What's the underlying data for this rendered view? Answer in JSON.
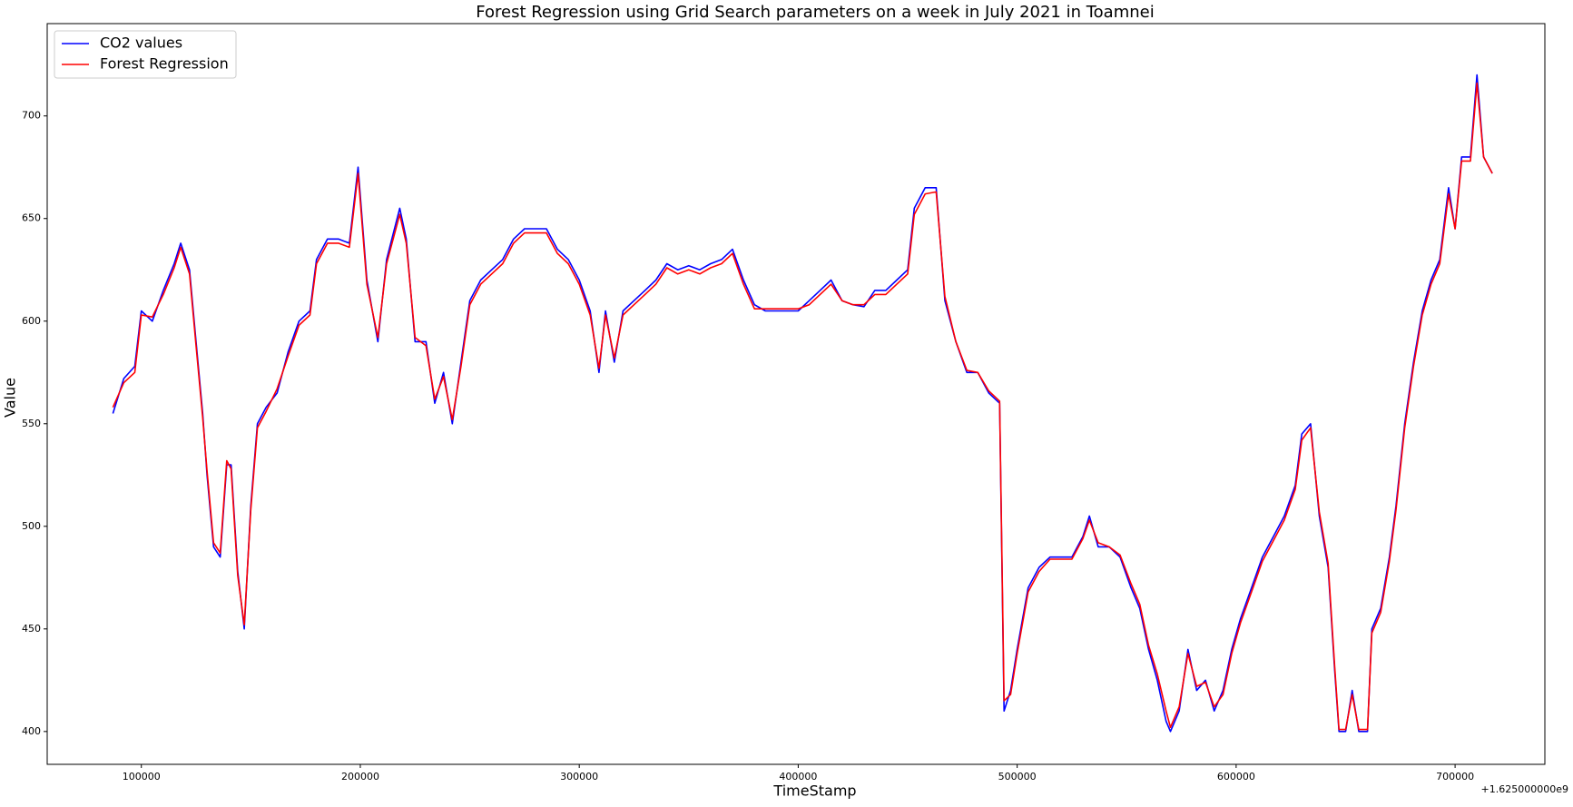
{
  "chart_data": {
    "type": "line",
    "title": "Forest Regression using Grid Search parameters on a week in July 2021 in Toamnei",
    "x_label": "TimeStamp",
    "y_label": "Value",
    "x_offset_label": "+1.625000000e9",
    "legend_position": "upper left",
    "x": [
      87000,
      92000,
      97000,
      100000,
      105000,
      110000,
      115000,
      118000,
      122000,
      125000,
      128000,
      130000,
      133000,
      136000,
      139000,
      141000,
      144000,
      147000,
      150000,
      153000,
      157000,
      162000,
      167000,
      172000,
      177000,
      180000,
      185000,
      190000,
      195000,
      199000,
      203000,
      208000,
      212000,
      218000,
      221000,
      225000,
      230000,
      234000,
      238000,
      242000,
      246000,
      250000,
      255000,
      260000,
      265000,
      270000,
      275000,
      280000,
      285000,
      290000,
      295000,
      300000,
      305000,
      309000,
      312000,
      316000,
      320000,
      325000,
      330000,
      335000,
      340000,
      345000,
      350000,
      355000,
      360000,
      365000,
      370000,
      375000,
      380000,
      385000,
      390000,
      395000,
      400000,
      405000,
      410000,
      415000,
      420000,
      425000,
      430000,
      435000,
      440000,
      445000,
      450000,
      453000,
      458000,
      463000,
      467000,
      472000,
      477000,
      482000,
      487000,
      492000,
      494000,
      497000,
      500000,
      505000,
      510000,
      515000,
      520000,
      525000,
      530000,
      533000,
      537000,
      542000,
      547000,
      552000,
      556000,
      560000,
      564000,
      568000,
      570000,
      574000,
      578000,
      582000,
      586000,
      590000,
      594000,
      598000,
      602000,
      607000,
      612000,
      617000,
      622000,
      627000,
      630000,
      634000,
      638000,
      642000,
      645000,
      647000,
      650000,
      653000,
      656000,
      660000,
      662000,
      666000,
      670000,
      673000,
      677000,
      681000,
      685000,
      689000,
      693000,
      697000,
      700000,
      703000,
      707000,
      710000,
      713000,
      717000
    ],
    "series": [
      {
        "name": "CO2 values",
        "color": "#0000ff",
        "values": [
          555,
          572,
          578,
          605,
          600,
          615,
          628,
          638,
          625,
          590,
          555,
          525,
          490,
          485,
          530,
          530,
          478,
          450,
          510,
          550,
          558,
          565,
          585,
          600,
          605,
          630,
          640,
          640,
          638,
          675,
          620,
          590,
          630,
          655,
          640,
          590,
          590,
          560,
          575,
          550,
          580,
          610,
          620,
          625,
          630,
          640,
          645,
          645,
          645,
          635,
          630,
          620,
          605,
          575,
          605,
          580,
          605,
          610,
          615,
          620,
          628,
          625,
          627,
          625,
          628,
          630,
          635,
          620,
          608,
          605,
          605,
          605,
          605,
          610,
          615,
          620,
          610,
          608,
          607,
          615,
          615,
          620,
          625,
          655,
          665,
          665,
          610,
          590,
          575,
          575,
          565,
          560,
          410,
          420,
          440,
          470,
          480,
          485,
          485,
          485,
          495,
          505,
          490,
          490,
          485,
          470,
          460,
          440,
          425,
          405,
          400,
          410,
          440,
          420,
          425,
          410,
          420,
          440,
          455,
          470,
          485,
          495,
          505,
          520,
          545,
          550,
          505,
          480,
          430,
          400,
          400,
          420,
          400,
          400,
          450,
          460,
          485,
          510,
          550,
          580,
          605,
          620,
          630,
          665,
          645,
          680,
          680,
          720,
          680,
          672
        ]
      },
      {
        "name": "Forest Regression",
        "color": "#ff0000",
        "values": [
          558,
          570,
          575,
          603,
          602,
          613,
          626,
          636,
          623,
          588,
          553,
          527,
          492,
          487,
          532,
          528,
          476,
          452,
          508,
          548,
          556,
          567,
          583,
          598,
          603,
          628,
          638,
          638,
          636,
          672,
          618,
          592,
          628,
          652,
          638,
          592,
          588,
          562,
          573,
          552,
          578,
          608,
          618,
          623,
          628,
          638,
          643,
          643,
          643,
          633,
          628,
          618,
          603,
          577,
          603,
          582,
          603,
          608,
          613,
          618,
          626,
          623,
          625,
          623,
          626,
          628,
          633,
          618,
          606,
          606,
          606,
          606,
          606,
          608,
          613,
          618,
          610,
          608,
          608,
          613,
          613,
          618,
          623,
          652,
          662,
          663,
          612,
          590,
          576,
          575,
          566,
          561,
          415,
          418,
          438,
          468,
          478,
          484,
          484,
          484,
          494,
          503,
          492,
          490,
          486,
          472,
          462,
          442,
          428,
          410,
          402,
          412,
          438,
          422,
          424,
          412,
          418,
          438,
          453,
          468,
          483,
          493,
          503,
          518,
          542,
          548,
          507,
          482,
          432,
          401,
          401,
          418,
          401,
          401,
          448,
          458,
          483,
          508,
          548,
          578,
          603,
          618,
          628,
          662,
          645,
          678,
          678,
          716,
          680,
          672
        ]
      }
    ],
    "xlim": [
      57000,
      741000
    ],
    "ylim": [
      384,
      745
    ],
    "xticks": [
      100000,
      200000,
      300000,
      400000,
      500000,
      600000,
      700000
    ],
    "yticks": [
      400,
      450,
      500,
      550,
      600,
      650,
      700
    ],
    "grid": false
  }
}
